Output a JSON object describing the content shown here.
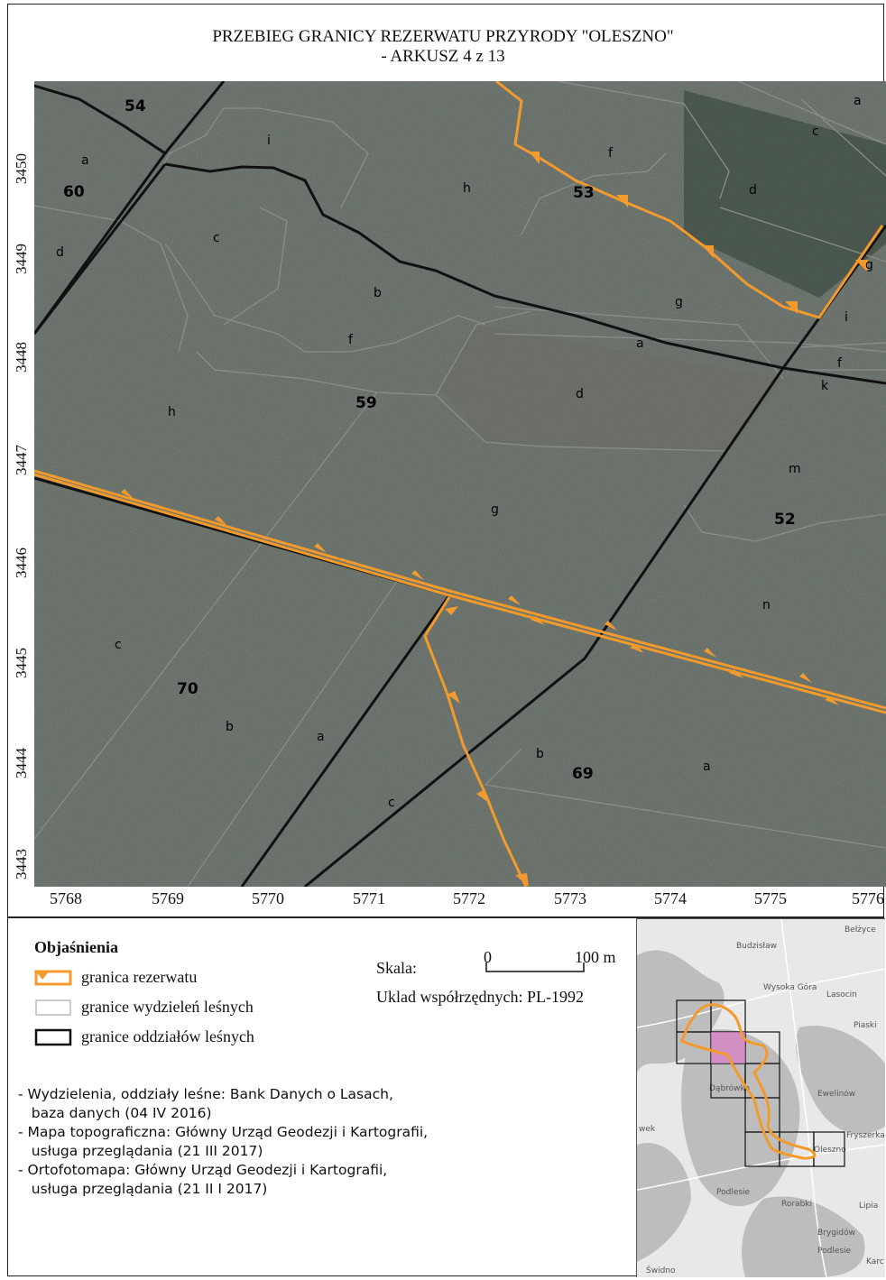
{
  "title": {
    "line1": "PRZEBIEG GRANICY REZERWATU PRZYRODY \"OLESZNO\"",
    "line2": "- ARKUSZ 4 z 13"
  },
  "axes": {
    "y_ticks": [
      "3450",
      "3449",
      "3448",
      "3447",
      "3446",
      "3445",
      "3444",
      "3443"
    ],
    "x_ticks": [
      "5768",
      "5769",
      "5770",
      "5771",
      "5772",
      "5773",
      "5774",
      "5775",
      "5776"
    ]
  },
  "map_labels": {
    "compartments": [
      "54",
      "60",
      "53",
      "59",
      "52",
      "70",
      "69"
    ],
    "subdivisions": [
      "a",
      "i",
      "c",
      "f",
      "h",
      "d",
      "a",
      "c",
      "d",
      "g",
      "b",
      "g",
      "f",
      "i",
      "a",
      "f",
      "k",
      "d",
      "h",
      "m",
      "g",
      "n",
      "c",
      "b",
      "a",
      "b",
      "a",
      "c"
    ]
  },
  "legend": {
    "title": "Objaśnienia",
    "items": [
      {
        "label": "granica rezerwatu",
        "color": "#f39a2c"
      },
      {
        "label": "granice wydzieleń leśnych",
        "color": "#9a9a9a"
      },
      {
        "label": "granice oddziałów leśnych",
        "color": "#111111"
      }
    ]
  },
  "scale": {
    "label": "Skala:",
    "zero": "0",
    "end": "100 m",
    "crs": "Uklad współrzędnych: PL-1992"
  },
  "sources": [
    "- Wydzielenia, oddziały leśne: Bank Danych o Lasach,",
    "   baza danych (04 IV 2016)",
    "- Mapa topograficzna: Główny Urząd Geodezji i Kartografii,",
    "   usługa przeglądania (21 III 2017)",
    "- Ortofotomapa: Główny Urząd Geodezji i Kartografii,",
    "   usługa przeglądania (21 II I 2017)"
  ],
  "inset": {
    "places": [
      "Bełżyce",
      "Budzisław",
      "Wysoka Góra",
      "Lasocin",
      "Piaski",
      "Dąbrówka",
      "Ewelinów",
      "wek",
      "Oleszno",
      "Fryszerka",
      "Podlesie",
      "Lipia",
      "Rorabki",
      "Brygidów",
      "Podlesie",
      "Świdno",
      "Karc"
    ]
  },
  "colors": {
    "reserve_boundary": "#f39a2c",
    "forest_subdivision": "#9a9a9a",
    "forest_compartment": "#111111",
    "orthophoto": "#4f5552"
  }
}
